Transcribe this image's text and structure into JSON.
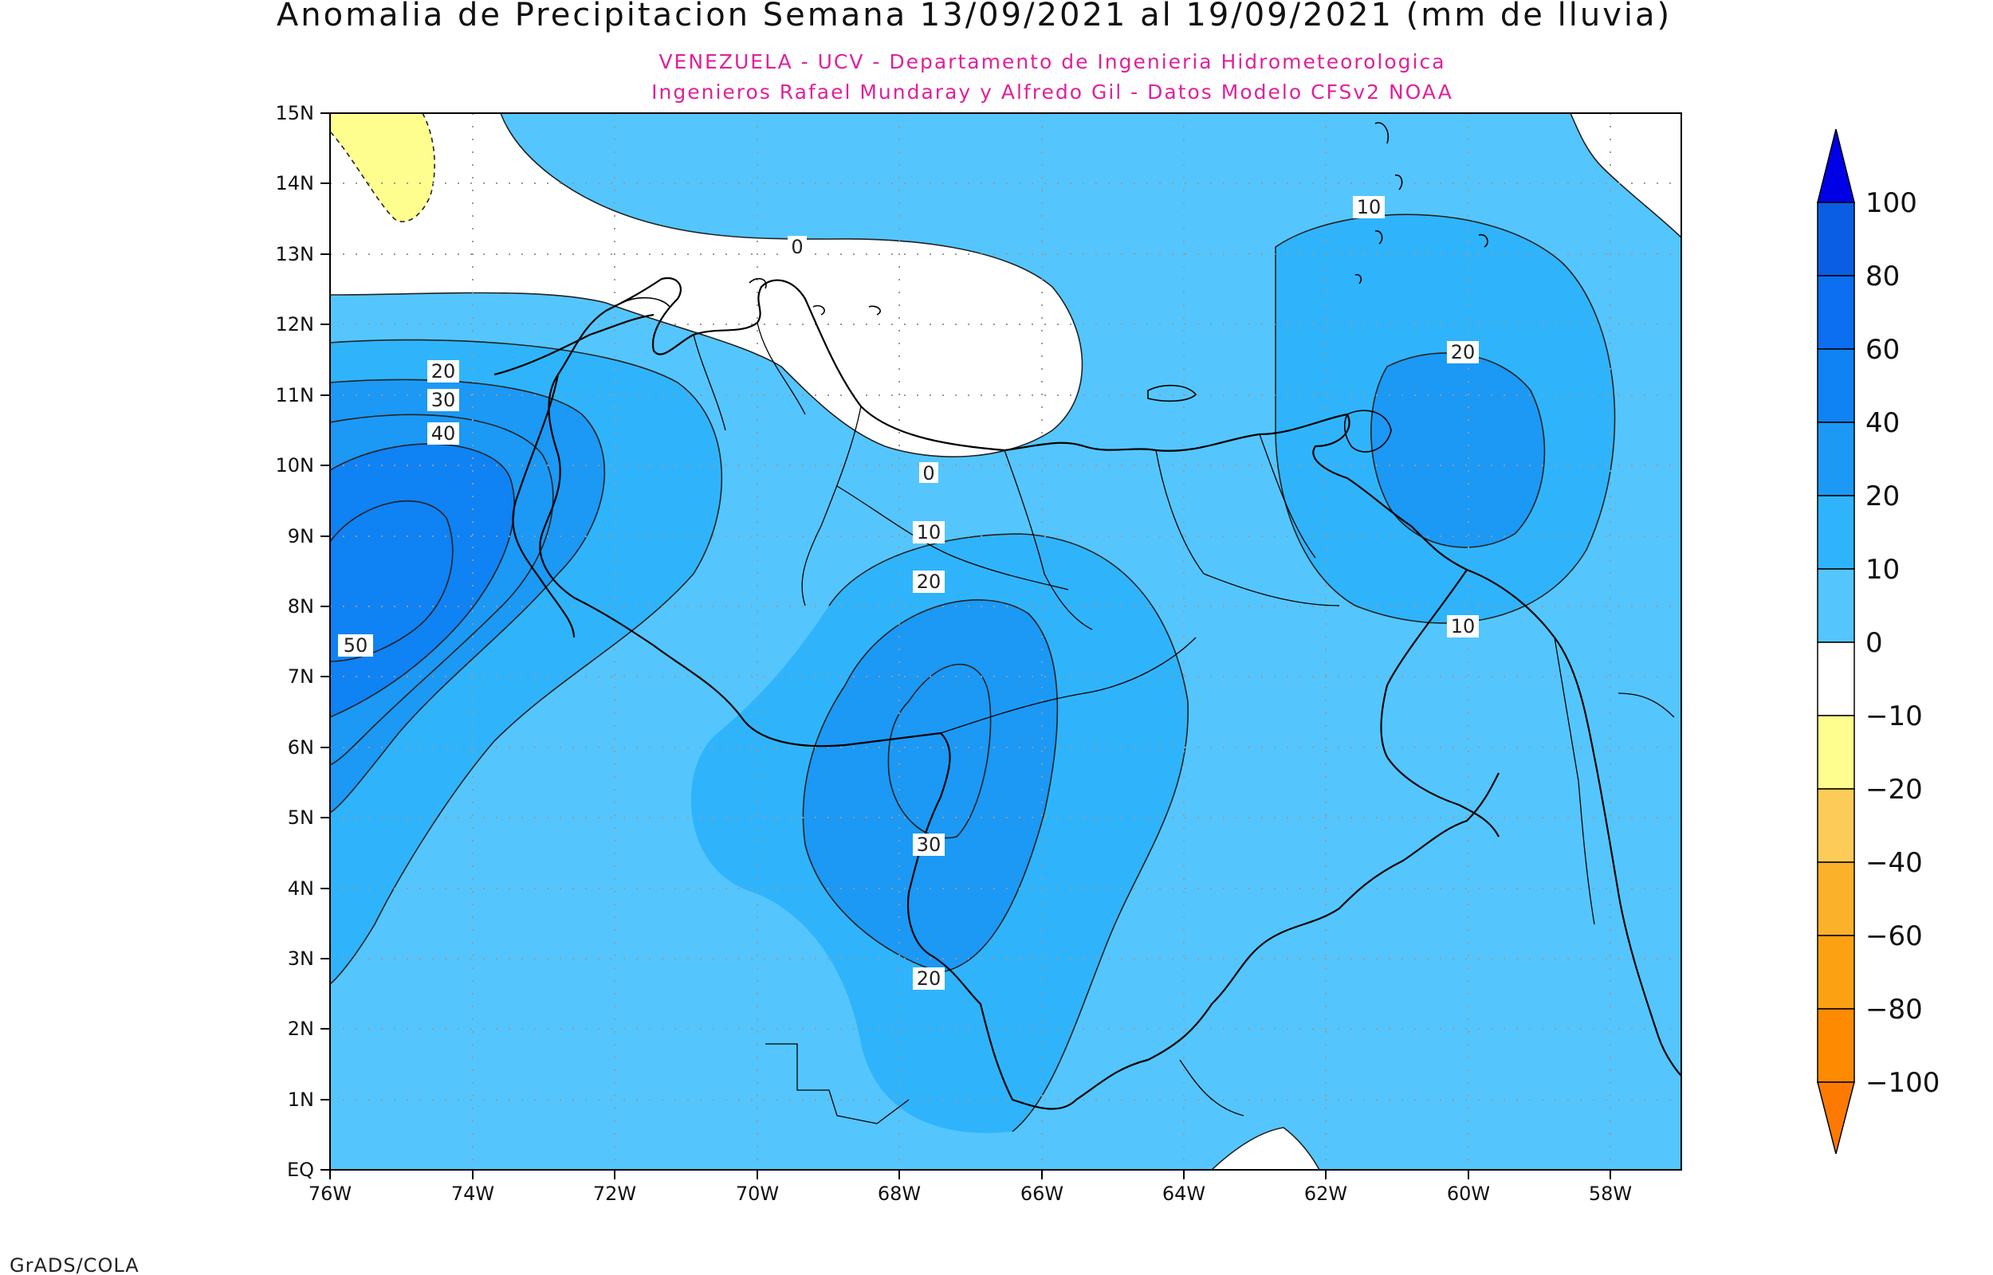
{
  "header": {
    "title": "Anomalia de Precipitacion Semana 13/09/2021 al 19/09/2021 (mm de lluvia)",
    "subtitle_line1": "VENEZUELA - UCV - Departamento de Ingenieria Hidrometeorologica",
    "subtitle_line2": "Ingenieros Rafael Mundaray y Alfredo Gil - Datos Modelo CFSv2 NOAA"
  },
  "map": {
    "lon_range": [
      -76,
      -57
    ],
    "lat_range": [
      0,
      15
    ],
    "lat_ticks": [
      "EQ",
      "1N",
      "2N",
      "3N",
      "4N",
      "5N",
      "6N",
      "7N",
      "8N",
      "9N",
      "10N",
      "11N",
      "12N",
      "13N",
      "14N",
      "15N"
    ],
    "lon_ticks": [
      "76W",
      "74W",
      "72W",
      "70W",
      "68W",
      "66W",
      "64W",
      "62W",
      "60W",
      "58W"
    ],
    "grid": true,
    "contour_labels": [
      "0",
      "0",
      "10",
      "10",
      "10",
      "20",
      "20",
      "20",
      "20",
      "30",
      "30",
      "40",
      "50"
    ]
  },
  "colorbar": {
    "labels": [
      "100",
      "80",
      "60",
      "40",
      "20",
      "10",
      "0",
      "−10",
      "−20",
      "−40",
      "−60",
      "−80",
      "−100"
    ],
    "colors": [
      "#0000e6",
      "#0a5ee4",
      "#0c6ef0",
      "#0f82f4",
      "#1b99f5",
      "#2fb4fb",
      "#54c6fd",
      "#ffffff",
      "#fefe8e",
      "#fdcb57",
      "#fcb12a",
      "#fca212",
      "#fe8a02",
      "#fd7a02"
    ],
    "placement": "right"
  },
  "footer": {
    "credit": "GrADS/COLA"
  }
}
